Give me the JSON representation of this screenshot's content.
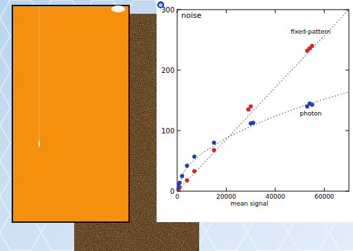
{
  "chart_data": {
    "type": "scatter",
    "title": "noise",
    "y_label": "e",
    "x_label": "mean signal",
    "xlim": [
      0,
      70000
    ],
    "xticks": [
      0,
      20000,
      40000,
      60000
    ],
    "ylim": [
      0,
      300
    ],
    "yticks": [
      0,
      100,
      200,
      300
    ],
    "grid": false,
    "series": [
      {
        "name": "fixed-pattern",
        "color": "#e0201c",
        "type": "scatter",
        "marker": "circle",
        "x": [
          0,
          500,
          1000,
          4000,
          7000,
          15000,
          29000,
          30000,
          53000,
          54000,
          55000
        ],
        "values": [
          2,
          4,
          6,
          18,
          33,
          68,
          135,
          140,
          232,
          236,
          240
        ]
      },
      {
        "name": "photon",
        "color": "#1c3cc8",
        "type": "scatter",
        "marker": "circle",
        "x": [
          0,
          500,
          1000,
          2000,
          4000,
          7000,
          15000,
          30000,
          31000,
          53000,
          54000,
          55000
        ],
        "values": [
          5,
          10,
          14,
          25,
          42,
          57,
          80,
          112,
          113,
          140,
          145,
          143
        ]
      },
      {
        "color": "#555555",
        "type": "line",
        "line_style": "dotted",
        "x": [
          0,
          70000
        ],
        "values": [
          0,
          300
        ]
      },
      {
        "color": "#555555",
        "type": "line",
        "line_style": "dotted",
        "x": [
          0,
          2500,
          5000,
          10000,
          20000,
          30000,
          40000,
          50000,
          60000,
          70000
        ],
        "values": [
          0,
          31,
          44,
          62,
          88,
          107,
          124,
          139,
          152,
          164
        ]
      }
    ]
  }
}
